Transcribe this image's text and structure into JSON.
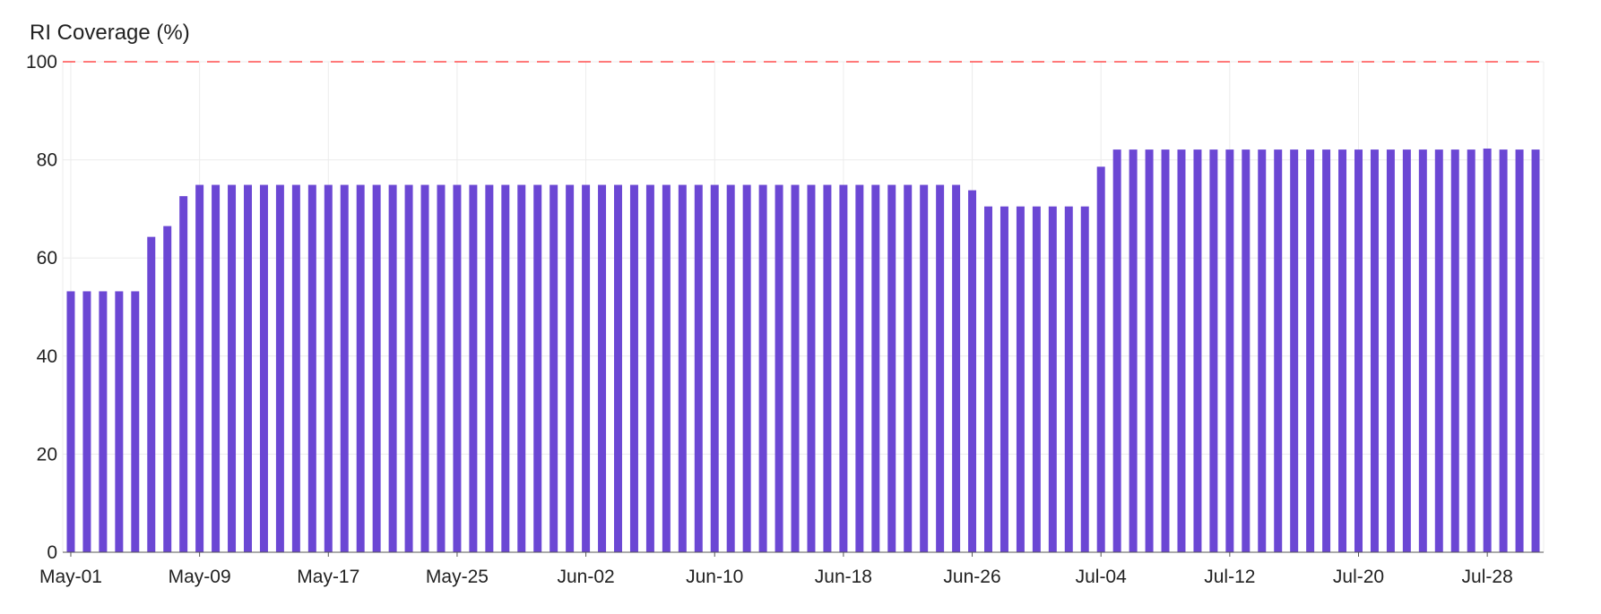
{
  "chart_data": {
    "type": "bar",
    "title": "",
    "ylabel": "RI Coverage (%)",
    "xlabel": "",
    "ylim": [
      0,
      100
    ],
    "yticks": [
      0,
      20,
      40,
      60,
      80,
      100
    ],
    "reference_line": {
      "value": 100,
      "style": "dashed",
      "color": "#ff4d4d"
    },
    "grid": true,
    "bar_color": "#6b47d4",
    "xtick_labels": [
      "May-01",
      "May-09",
      "May-17",
      "May-25",
      "Jun-02",
      "Jun-10",
      "Jun-18",
      "Jun-26",
      "Jul-04",
      "Jul-12",
      "Jul-20",
      "Jul-28"
    ],
    "x": [
      "May-01",
      "May-02",
      "May-03",
      "May-04",
      "May-05",
      "May-06",
      "May-07",
      "May-08",
      "May-09",
      "May-10",
      "May-11",
      "May-12",
      "May-13",
      "May-14",
      "May-15",
      "May-16",
      "May-17",
      "May-18",
      "May-19",
      "May-20",
      "May-21",
      "May-22",
      "May-23",
      "May-24",
      "May-25",
      "May-26",
      "May-27",
      "May-28",
      "May-29",
      "May-30",
      "May-31",
      "Jun-01",
      "Jun-02",
      "Jun-03",
      "Jun-04",
      "Jun-05",
      "Jun-06",
      "Jun-07",
      "Jun-08",
      "Jun-09",
      "Jun-10",
      "Jun-11",
      "Jun-12",
      "Jun-13",
      "Jun-14",
      "Jun-15",
      "Jun-16",
      "Jun-17",
      "Jun-18",
      "Jun-19",
      "Jun-20",
      "Jun-21",
      "Jun-22",
      "Jun-23",
      "Jun-24",
      "Jun-25",
      "Jun-26",
      "Jun-27",
      "Jun-28",
      "Jun-29",
      "Jun-30",
      "Jul-01",
      "Jul-02",
      "Jul-03",
      "Jul-04",
      "Jul-05",
      "Jul-06",
      "Jul-07",
      "Jul-08",
      "Jul-09",
      "Jul-10",
      "Jul-11",
      "Jul-12",
      "Jul-13",
      "Jul-14",
      "Jul-15",
      "Jul-16",
      "Jul-17",
      "Jul-18",
      "Jul-19",
      "Jul-20",
      "Jul-21",
      "Jul-22",
      "Jul-23",
      "Jul-24",
      "Jul-25",
      "Jul-26",
      "Jul-27",
      "Jul-28",
      "Jul-29",
      "Jul-30",
      "Jul-31"
    ],
    "values": [
      53.2,
      53.2,
      53.2,
      53.2,
      53.2,
      64.3,
      66.5,
      72.6,
      74.9,
      74.9,
      74.9,
      74.9,
      74.9,
      74.9,
      74.9,
      74.9,
      74.9,
      74.9,
      74.9,
      74.9,
      74.9,
      74.9,
      74.9,
      74.9,
      74.9,
      74.9,
      74.9,
      74.9,
      74.9,
      74.9,
      74.9,
      74.9,
      74.9,
      74.9,
      74.9,
      74.9,
      74.9,
      74.9,
      74.9,
      74.9,
      74.9,
      74.9,
      74.9,
      74.9,
      74.9,
      74.9,
      74.9,
      74.9,
      74.9,
      74.9,
      74.9,
      74.9,
      74.9,
      74.9,
      74.9,
      74.9,
      73.8,
      70.5,
      70.5,
      70.5,
      70.5,
      70.5,
      70.5,
      70.5,
      78.6,
      82.1,
      82.1,
      82.1,
      82.1,
      82.1,
      82.1,
      82.1,
      82.1,
      82.1,
      82.1,
      82.1,
      82.1,
      82.1,
      82.1,
      82.1,
      82.1,
      82.1,
      82.1,
      82.1,
      82.1,
      82.1,
      82.1,
      82.1,
      82.3,
      82.1,
      82.1,
      82.1
    ]
  }
}
